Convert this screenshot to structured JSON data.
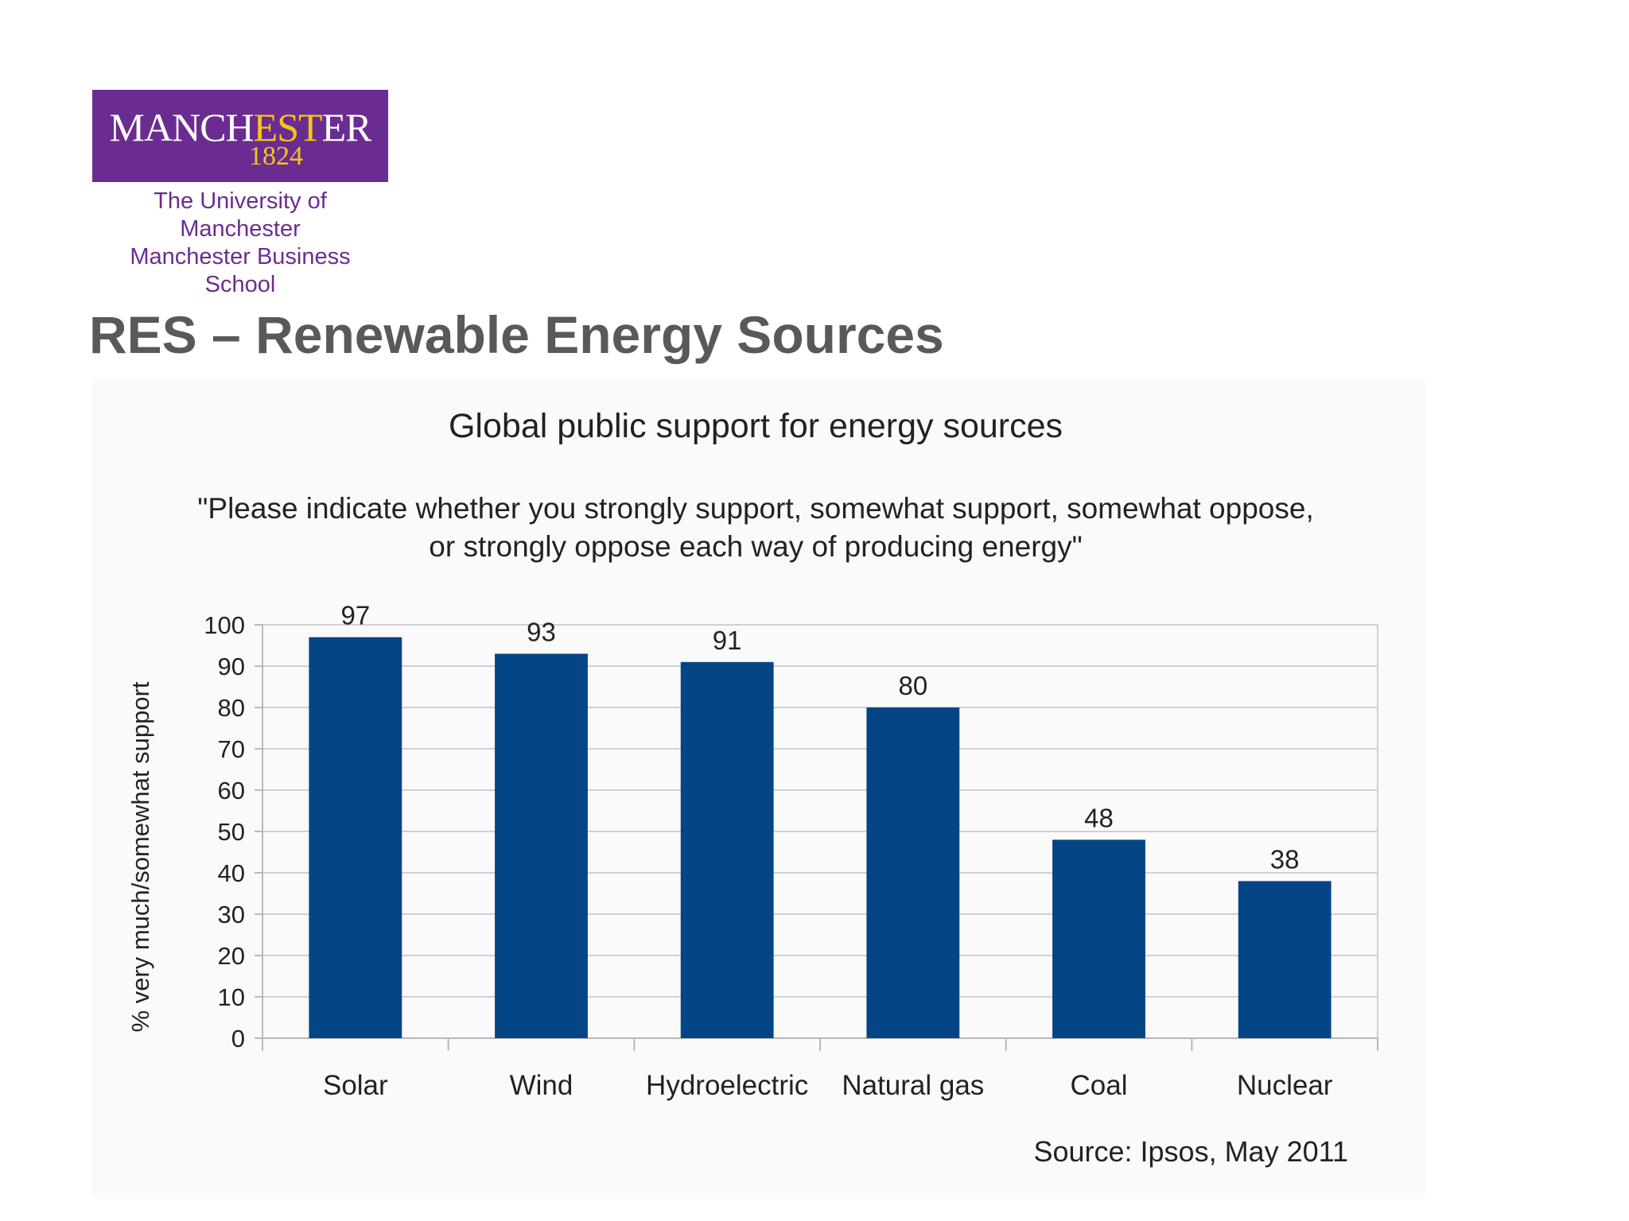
{
  "logo": {
    "word_prefix": "MANCH",
    "word_highlight": "EST",
    "word_suffix": "ER",
    "year": "1824",
    "line1": "The University of Manchester",
    "line2": "Manchester Business School"
  },
  "slide_title": "RES – Renewable Energy Sources",
  "colors": {
    "bar": "#044585",
    "brand_purple": "#6b2c91",
    "brand_yellow": "#f7c416",
    "grid": "#d0d0d0"
  },
  "chart_data": {
    "type": "bar",
    "title": "Global public support for energy sources",
    "subtitle_line1": "\"Please indicate whether you strongly support, somewhat support, somewhat oppose,",
    "subtitle_line2": "or strongly oppose each way of producing energy\"",
    "ylabel": "% very much/somewhat support",
    "xlabel": "",
    "categories": [
      "Solar",
      "Wind",
      "Hydroelectric",
      "Natural gas",
      "Coal",
      "Nuclear"
    ],
    "values": [
      97,
      93,
      91,
      80,
      48,
      38
    ],
    "ylim": [
      0,
      100
    ],
    "yticks": [
      0,
      10,
      20,
      30,
      40,
      50,
      60,
      70,
      80,
      90,
      100
    ],
    "grid": true,
    "data_labels": true,
    "source": "Source: Ipsos, May 2011"
  }
}
